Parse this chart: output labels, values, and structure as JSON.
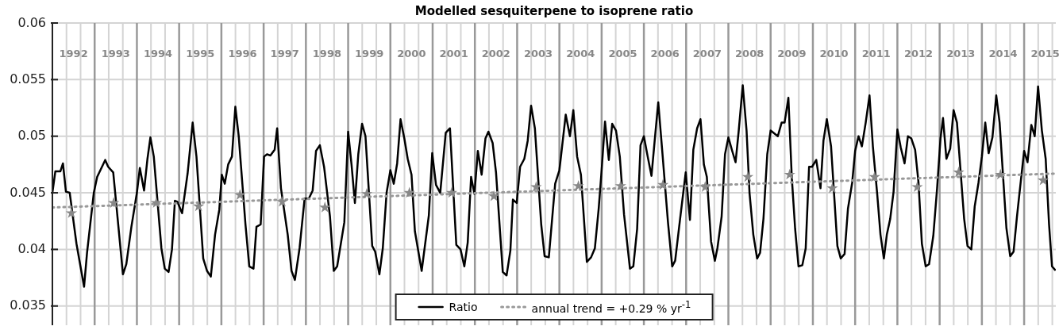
{
  "chart_data": {
    "type": "line",
    "title": "Modelled sesquiterpene to isoprene ratio",
    "xlim": [
      1992,
      2015.75
    ],
    "ylim": [
      0.0333,
      0.06
    ],
    "xticks": [
      {
        "value": 1992.5,
        "label": "1992"
      },
      {
        "value": 1993.5,
        "label": "1993"
      },
      {
        "value": 1994.5,
        "label": "1994"
      },
      {
        "value": 1995.5,
        "label": "1995"
      },
      {
        "value": 1996.5,
        "label": "1996"
      },
      {
        "value": 1997.5,
        "label": "1997"
      },
      {
        "value": 1998.5,
        "label": "1998"
      },
      {
        "value": 1999.5,
        "label": "1999"
      },
      {
        "value": 2000.5,
        "label": "2000"
      },
      {
        "value": 2001.5,
        "label": "2001"
      },
      {
        "value": 2002.5,
        "label": "2002"
      },
      {
        "value": 2003.5,
        "label": "2003"
      },
      {
        "value": 2004.5,
        "label": "2004"
      },
      {
        "value": 2005.5,
        "label": "2005"
      },
      {
        "value": 2006.5,
        "label": "2006"
      },
      {
        "value": 2007.5,
        "label": "2007"
      },
      {
        "value": 2008.5,
        "label": "2008"
      },
      {
        "value": 2009.5,
        "label": "2009"
      },
      {
        "value": 2010.5,
        "label": "2010"
      },
      {
        "value": 2011.5,
        "label": "2011"
      },
      {
        "value": 2012.5,
        "label": "2012"
      },
      {
        "value": 2013.5,
        "label": "2013"
      },
      {
        "value": 2014.5,
        "label": "2014"
      },
      {
        "value": 2015.5,
        "label": "2015"
      },
      {
        "value": 1992.333,
        "label": null
      },
      {
        "value": 1992.667,
        "label": null
      },
      {
        "value": 1993.333,
        "label": null
      },
      {
        "value": 1993.667,
        "label": null
      },
      {
        "value": 1994.333,
        "label": null
      },
      {
        "value": 1994.667,
        "label": null
      },
      {
        "value": 1995.333,
        "label": null
      },
      {
        "value": 1995.667,
        "label": null
      },
      {
        "value": 1996.333,
        "label": null
      },
      {
        "value": 1996.667,
        "label": null
      },
      {
        "value": 1997.333,
        "label": null
      },
      {
        "value": 1997.667,
        "label": null
      },
      {
        "value": 1998.333,
        "label": null
      },
      {
        "value": 1998.667,
        "label": null
      },
      {
        "value": 1999.333,
        "label": null
      },
      {
        "value": 1999.667,
        "label": null
      },
      {
        "value": 2000.333,
        "label": null
      },
      {
        "value": 2000.667,
        "label": null
      },
      {
        "value": 2001.333,
        "label": null
      },
      {
        "value": 2001.667,
        "label": null
      },
      {
        "value": 2002.333,
        "label": null
      },
      {
        "value": 2002.667,
        "label": null
      },
      {
        "value": 2003.333,
        "label": null
      },
      {
        "value": 2003.667,
        "label": null
      },
      {
        "value": 2004.333,
        "label": null
      },
      {
        "value": 2004.667,
        "label": null
      },
      {
        "value": 2005.333,
        "label": null
      },
      {
        "value": 2005.667,
        "label": null
      },
      {
        "value": 2006.333,
        "label": null
      },
      {
        "value": 2006.667,
        "label": null
      },
      {
        "value": 2007.333,
        "label": null
      },
      {
        "value": 2007.667,
        "label": null
      },
      {
        "value": 2008.333,
        "label": null
      },
      {
        "value": 2008.667,
        "label": null
      },
      {
        "value": 2009.333,
        "label": null
      },
      {
        "value": 2009.667,
        "label": null
      },
      {
        "value": 2010.333,
        "label": null
      },
      {
        "value": 2010.667,
        "label": null
      },
      {
        "value": 2011.333,
        "label": null
      },
      {
        "value": 2011.667,
        "label": null
      },
      {
        "value": 2012.333,
        "label": null
      },
      {
        "value": 2012.667,
        "label": null
      },
      {
        "value": 2013.333,
        "label": null
      },
      {
        "value": 2013.667,
        "label": null
      },
      {
        "value": 2014.333,
        "label": null
      },
      {
        "value": 2014.667,
        "label": null
      },
      {
        "value": 2015.333,
        "label": null
      },
      {
        "value": 2015.667,
        "label": null
      }
    ],
    "yticks": [
      0.035,
      0.04,
      0.045,
      0.05,
      0.055,
      0.06
    ],
    "grid": true,
    "legend": "bottom",
    "marker": "none",
    "ref_lines": [
      {
        "axis": "x",
        "value": 1993,
        "color": "#999999"
      },
      {
        "axis": "x",
        "value": 1994,
        "color": "#999999"
      },
      {
        "axis": "x",
        "value": 1995,
        "color": "#999999"
      },
      {
        "axis": "x",
        "value": 1996,
        "color": "#999999"
      },
      {
        "axis": "x",
        "value": 1997,
        "color": "#999999"
      },
      {
        "axis": "x",
        "value": 1998,
        "color": "#999999"
      },
      {
        "axis": "x",
        "value": 1999,
        "color": "#999999"
      },
      {
        "axis": "x",
        "value": 2000,
        "color": "#999999"
      },
      {
        "axis": "x",
        "value": 2001,
        "color": "#999999"
      },
      {
        "axis": "x",
        "value": 2002,
        "color": "#999999"
      },
      {
        "axis": "x",
        "value": 2003,
        "color": "#999999"
      },
      {
        "axis": "x",
        "value": 2004,
        "color": "#999999"
      },
      {
        "axis": "x",
        "value": 2005,
        "color": "#999999"
      },
      {
        "axis": "x",
        "value": 2006,
        "color": "#999999"
      },
      {
        "axis": "x",
        "value": 2007,
        "color": "#999999"
      },
      {
        "axis": "x",
        "value": 2008,
        "color": "#999999"
      },
      {
        "axis": "x",
        "value": 2009,
        "color": "#999999"
      },
      {
        "axis": "x",
        "value": 2010,
        "color": "#999999"
      },
      {
        "axis": "x",
        "value": 2011,
        "color": "#999999"
      },
      {
        "axis": "x",
        "value": 2012,
        "color": "#999999"
      },
      {
        "axis": "x",
        "value": 2013,
        "color": "#999999"
      },
      {
        "axis": "x",
        "value": 2014,
        "color": "#999999"
      },
      {
        "axis": "x",
        "value": 2015,
        "color": "#999999"
      }
    ],
    "series": [
      {
        "name": "Ratio",
        "color": "#000000",
        "line_style": "solid",
        "x": [
          1992.0,
          1992.07,
          1992.19,
          1992.25,
          1992.32,
          1992.41,
          1992.57,
          1992.75,
          1992.82,
          1992.98,
          1993.06,
          1993.25,
          1993.32,
          1993.44,
          1993.54,
          1993.67,
          1993.75,
          1993.87,
          1994.0,
          1994.07,
          1994.17,
          1994.25,
          1994.32,
          1994.4,
          1994.58,
          1994.66,
          1994.75,
          1994.83,
          1994.9,
          1994.96,
          1995.07,
          1995.2,
          1995.32,
          1995.41,
          1995.57,
          1995.66,
          1995.75,
          1995.85,
          1995.95,
          1996.01,
          1996.08,
          1996.16,
          1996.25,
          1996.33,
          1996.41,
          1996.57,
          1996.66,
          1996.76,
          1996.83,
          1996.93,
          1997.01,
          1997.08,
          1997.16,
          1997.26,
          1997.32,
          1997.41,
          1997.57,
          1997.66,
          1997.74,
          1997.85,
          1997.97,
          1998.07,
          1998.16,
          1998.24,
          1998.33,
          1998.43,
          1998.57,
          1998.66,
          1998.74,
          1998.91,
          1999.0,
          1999.08,
          1999.16,
          1999.24,
          1999.33,
          1999.41,
          1999.57,
          1999.64,
          1999.74,
          1999.82,
          1999.91,
          2000.0,
          2000.08,
          2000.16,
          2000.24,
          2000.33,
          2000.41,
          2000.5,
          2000.58,
          2000.74,
          2000.91,
          2000.99,
          2001.08,
          2001.18,
          2001.31,
          2001.41,
          2001.56,
          2001.66,
          2001.75,
          2001.83,
          2001.91,
          2001.99,
          2002.07,
          2002.16,
          2002.25,
          2002.32,
          2002.42,
          2002.5,
          2002.66,
          2002.75,
          2002.84,
          2002.9,
          2002.99,
          2003.07,
          2003.17,
          2003.25,
          2003.33,
          2003.42,
          2003.57,
          2003.65,
          2003.75,
          2003.9,
          2004.0,
          2004.15,
          2004.25,
          2004.33,
          2004.42,
          2004.51,
          2004.65,
          2004.75,
          2004.84,
          2004.93,
          2005.0,
          2005.08,
          2005.17,
          2005.25,
          2005.34,
          2005.43,
          2005.53,
          2005.67,
          2005.75,
          2005.84,
          2005.92,
          2006.0,
          2006.09,
          2006.18,
          2006.26,
          2006.34,
          2006.43,
          2006.57,
          2006.67,
          2006.74,
          2006.87,
          2006.99,
          2007.09,
          2007.17,
          2007.26,
          2007.34,
          2007.42,
          2007.49,
          2007.59,
          2007.68,
          2007.74,
          2007.84,
          2007.92,
          2008.0,
          2008.09,
          2008.17,
          2008.24,
          2008.34,
          2008.43,
          2008.5,
          2008.59,
          2008.68,
          2008.75,
          2008.83,
          2008.92,
          2009.0,
          2009.17,
          2009.26,
          2009.33,
          2009.42,
          2009.5,
          2009.58,
          2009.66,
          2009.75,
          2009.83,
          2009.91,
          2009.98,
          2010.08,
          2010.18,
          2010.25,
          2010.33,
          2010.43,
          2010.58,
          2010.66,
          2010.75,
          2010.83,
          2010.93,
          2011.0,
          2011.08,
          2011.16,
          2011.25,
          2011.34,
          2011.42,
          2011.52,
          2011.6,
          2011.68,
          2011.75,
          2011.83,
          2011.91,
          2012.0,
          2012.08,
          2012.17,
          2012.25,
          2012.33,
          2012.42,
          2012.5,
          2012.58,
          2012.67,
          2012.75,
          2012.85,
          2012.94,
          2013.02,
          2013.08,
          2013.16,
          2013.25,
          2013.33,
          2013.41,
          2013.58,
          2013.66,
          2013.75,
          2013.83,
          2013.92,
          2014.0,
          2014.08,
          2014.16,
          2014.25,
          2014.34,
          2014.42,
          2014.58,
          2014.67,
          2014.75,
          2014.83,
          2014.92,
          2015.0,
          2015.08,
          2015.17,
          2015.25,
          2015.33,
          2015.42,
          2015.51,
          2015.59,
          2015.66,
          2015.73
        ],
        "values": [
          0.045,
          0.0469,
          0.0469,
          0.0476,
          0.0451,
          0.045,
          0.0405,
          0.0367,
          0.0397,
          0.045,
          0.0464,
          0.0479,
          0.0473,
          0.0468,
          0.0429,
          0.0378,
          0.0387,
          0.042,
          0.045,
          0.0472,
          0.0452,
          0.048,
          0.0499,
          0.0482,
          0.0401,
          0.0383,
          0.038,
          0.04,
          0.0443,
          0.0442,
          0.0432,
          0.0467,
          0.0512,
          0.0482,
          0.0392,
          0.0381,
          0.0376,
          0.0413,
          0.0435,
          0.0466,
          0.0458,
          0.0475,
          0.0482,
          0.0526,
          0.05,
          0.0422,
          0.0385,
          0.0383,
          0.042,
          0.0422,
          0.0482,
          0.0484,
          0.0483,
          0.0488,
          0.0507,
          0.0454,
          0.0413,
          0.0381,
          0.0373,
          0.0401,
          0.0445,
          0.0445,
          0.0452,
          0.0487,
          0.0492,
          0.0473,
          0.0429,
          0.0381,
          0.0385,
          0.0424,
          0.0504,
          0.0475,
          0.0441,
          0.0484,
          0.0511,
          0.05,
          0.0403,
          0.0398,
          0.0378,
          0.0401,
          0.045,
          0.047,
          0.0458,
          0.0476,
          0.0515,
          0.0498,
          0.048,
          0.0466,
          0.0416,
          0.0381,
          0.043,
          0.0485,
          0.0457,
          0.045,
          0.0503,
          0.0507,
          0.0404,
          0.04,
          0.0385,
          0.0406,
          0.0464,
          0.0449,
          0.0487,
          0.0466,
          0.0498,
          0.0504,
          0.0494,
          0.0468,
          0.038,
          0.0377,
          0.0399,
          0.0444,
          0.0441,
          0.0473,
          0.048,
          0.0496,
          0.0527,
          0.0507,
          0.0422,
          0.0394,
          0.0393,
          0.0458,
          0.047,
          0.0519,
          0.05,
          0.0523,
          0.0482,
          0.0466,
          0.0389,
          0.0393,
          0.0401,
          0.0436,
          0.047,
          0.0513,
          0.0479,
          0.0511,
          0.0505,
          0.0482,
          0.0431,
          0.0383,
          0.0385,
          0.0418,
          0.0492,
          0.05,
          0.0482,
          0.0465,
          0.0498,
          0.053,
          0.0489,
          0.0424,
          0.0385,
          0.039,
          0.0431,
          0.0468,
          0.0426,
          0.0488,
          0.0507,
          0.0515,
          0.0475,
          0.0464,
          0.0407,
          0.039,
          0.0401,
          0.0429,
          0.0484,
          0.0499,
          0.0487,
          0.0477,
          0.0503,
          0.0545,
          0.0505,
          0.045,
          0.0413,
          0.0392,
          0.0397,
          0.0427,
          0.0484,
          0.0505,
          0.05,
          0.0512,
          0.0512,
          0.0534,
          0.0464,
          0.0418,
          0.0385,
          0.0386,
          0.0401,
          0.0473,
          0.0473,
          0.0479,
          0.0454,
          0.0496,
          0.0515,
          0.0491,
          0.0403,
          0.0392,
          0.0396,
          0.0436,
          0.0459,
          0.0487,
          0.05,
          0.0491,
          0.0512,
          0.0536,
          0.0491,
          0.045,
          0.0413,
          0.0392,
          0.0413,
          0.0427,
          0.0451,
          0.0506,
          0.049,
          0.0476,
          0.05,
          0.0498,
          0.0488,
          0.0459,
          0.0405,
          0.0385,
          0.0387,
          0.0412,
          0.0454,
          0.0498,
          0.0516,
          0.048,
          0.0489,
          0.0523,
          0.0512,
          0.0427,
          0.0403,
          0.04,
          0.0438,
          0.0459,
          0.0482,
          0.0512,
          0.0485,
          0.0499,
          0.0536,
          0.0512,
          0.0419,
          0.0394,
          0.0398,
          0.0429,
          0.046,
          0.0487,
          0.0477,
          0.051,
          0.05,
          0.0544,
          0.0505,
          0.048,
          0.0422,
          0.0385,
          0.0382
        ]
      },
      {
        "type": "scatter",
        "color": "#888888",
        "marker": "star",
        "x": [
          1992.45,
          1993.45,
          1994.46,
          1995.46,
          1996.44,
          1997.44,
          1998.45,
          1999.44,
          2000.45,
          2001.45,
          2002.45,
          2003.45,
          2004.45,
          2005.45,
          2006.45,
          2007.45,
          2008.46,
          2009.45,
          2010.46,
          2011.46,
          2012.47,
          2013.45,
          2014.44,
          2015.45
        ],
        "values": [
          0.0432,
          0.0441,
          0.0441,
          0.0438,
          0.0448,
          0.0442,
          0.0437,
          0.0449,
          0.045,
          0.045,
          0.0447,
          0.0455,
          0.0456,
          0.0456,
          0.0457,
          0.0455,
          0.0464,
          0.0466,
          0.0454,
          0.0464,
          0.0455,
          0.0468,
          0.0466,
          0.0461
        ]
      },
      {
        "name": "annual trend = +0.29 % yr$^{-1}$",
        "color": "#999999",
        "line_style": "dotted",
        "x": [
          1992,
          2015.75
        ],
        "values": [
          0.0437,
          0.0467
        ]
      }
    ]
  }
}
